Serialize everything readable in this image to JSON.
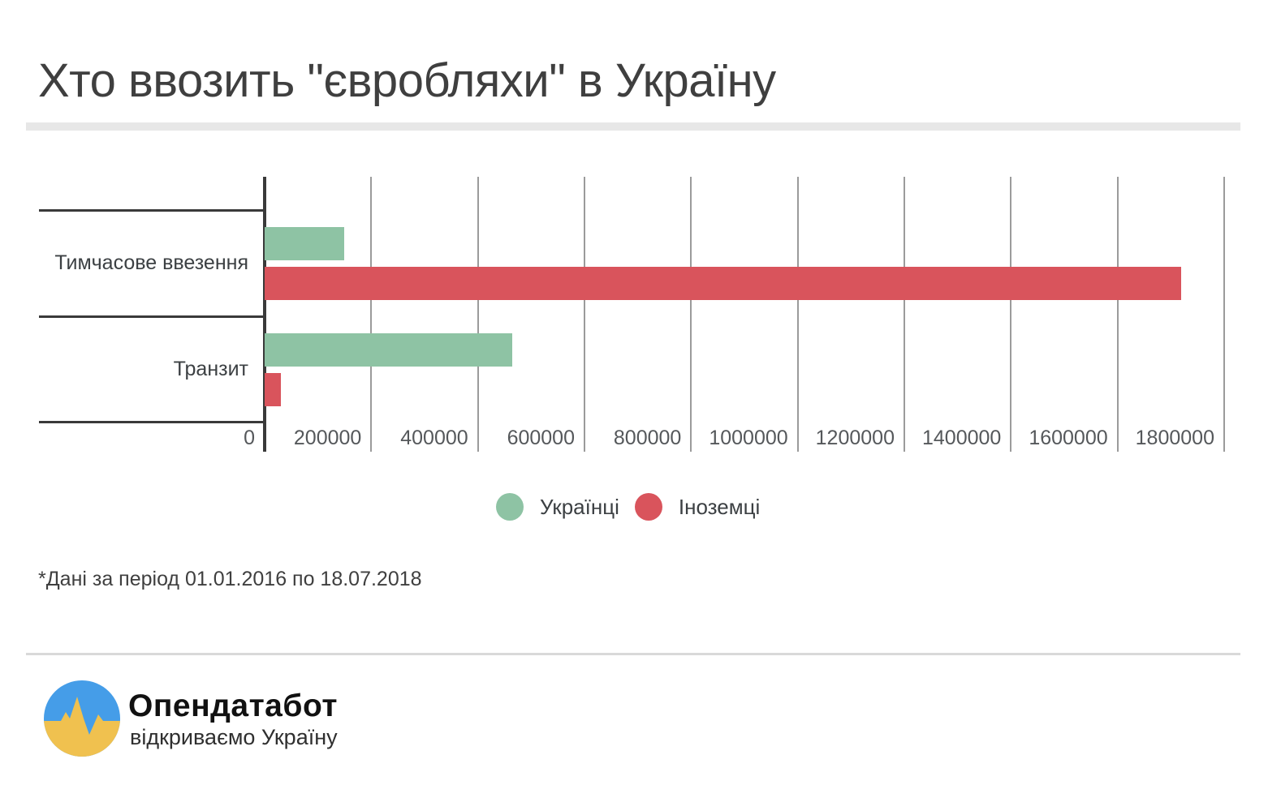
{
  "title": "Хто ввозить \"євробляхи\" в Україну",
  "footnote": "*Дані за період 01.01.2016 по 18.07.2018",
  "legend": {
    "items": [
      {
        "label": "Українці",
        "color": "#8ec3a4"
      },
      {
        "label": "Іноземці",
        "color": "#d9545c"
      }
    ]
  },
  "chart_data": {
    "type": "bar",
    "orientation": "horizontal",
    "title": "Хто ввозить \"євробляхи\" в Україну",
    "categories": [
      "Тимчасове ввезення",
      "Транзит"
    ],
    "series": [
      {
        "name": "Українці",
        "color": "#8ec3a4",
        "values": [
          150000,
          465000
        ]
      },
      {
        "name": "Іноземці",
        "color": "#d9545c",
        "values": [
          1720000,
          30000
        ]
      }
    ],
    "xlim": [
      0,
      1800000
    ],
    "x_ticks": [
      0,
      200000,
      400000,
      600000,
      800000,
      1000000,
      1200000,
      1400000,
      1600000,
      1800000
    ],
    "xlabel": "",
    "ylabel": "",
    "grid": true,
    "legend_position": "bottom",
    "note": "*Дані за період 01.01.2016 по 18.07.2018"
  },
  "logo": {
    "name": "Опендатабот",
    "tagline": "відкриваємо Україну",
    "icon": "opendatabot-waveform-icon",
    "colors": {
      "blue": "#459de8",
      "yellow": "#f0c14f"
    }
  },
  "colors": {
    "axis": "#3a3a3a",
    "gridline": "#9b9b9b",
    "title_text": "#3f3f3f",
    "divider_light": "#e7e7e7"
  }
}
